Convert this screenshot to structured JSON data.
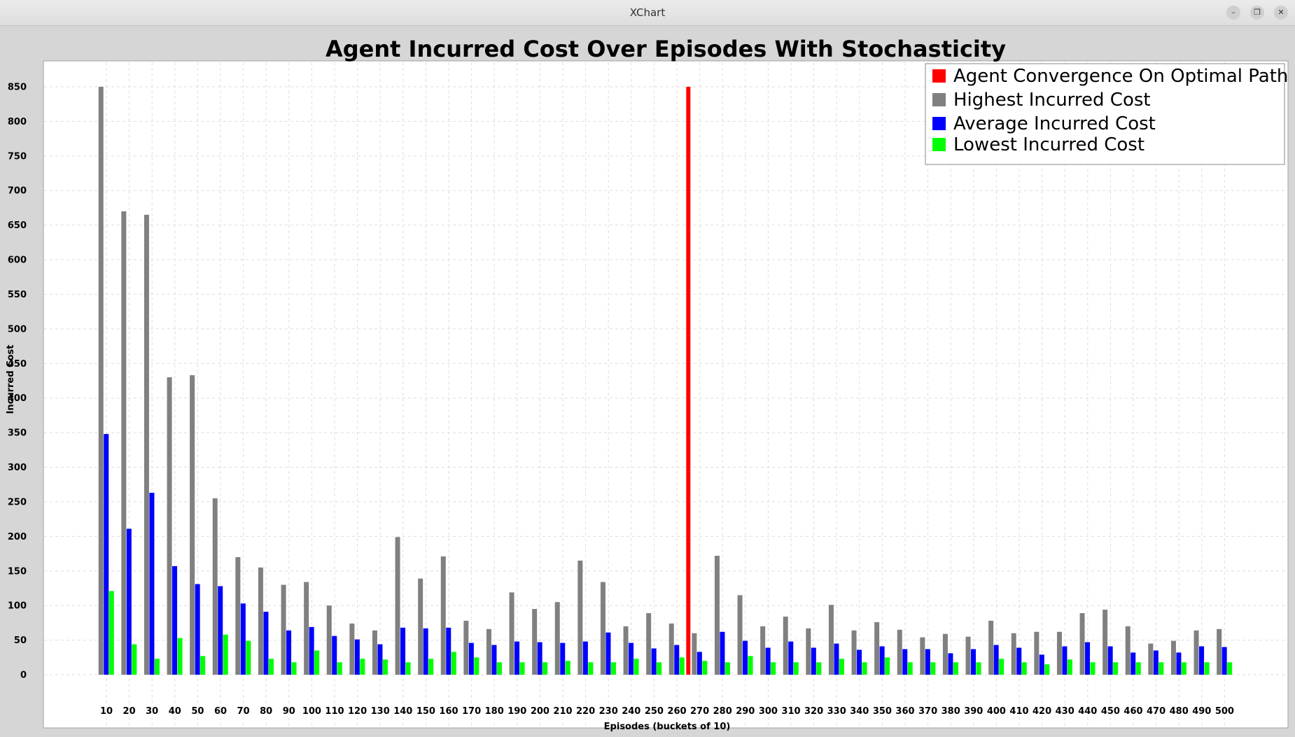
{
  "window": {
    "title": "XChart"
  },
  "chart_data": {
    "type": "bar",
    "title": "Agent Incurred Cost Over Episodes With Stochasticity",
    "xlabel": "Episodes (buckets of 10)",
    "ylabel": "Incurred Cost",
    "ylim": [
      0,
      850
    ],
    "yticks": [
      0,
      50,
      100,
      150,
      200,
      250,
      300,
      350,
      400,
      450,
      500,
      550,
      600,
      650,
      700,
      750,
      800,
      850
    ],
    "grid": true,
    "legend_position": "top-right",
    "categories": [
      "10",
      "20",
      "30",
      "40",
      "50",
      "60",
      "70",
      "80",
      "90",
      "100",
      "110",
      "120",
      "130",
      "140",
      "150",
      "160",
      "170",
      "180",
      "190",
      "200",
      "210",
      "220",
      "230",
      "240",
      "250",
      "260",
      "270",
      "280",
      "290",
      "300",
      "310",
      "320",
      "330",
      "340",
      "350",
      "360",
      "370",
      "380",
      "390",
      "400",
      "410",
      "420",
      "430",
      "440",
      "450",
      "460",
      "470",
      "480",
      "490",
      "500"
    ],
    "convergence": {
      "name": "Agent Convergence On Optimal Path",
      "position": "between 260 and 270",
      "value": 850,
      "color": "#ff0000"
    },
    "series": [
      {
        "name": "Highest Incurred Cost",
        "color": "#808080",
        "values": [
          850,
          670,
          665,
          430,
          433,
          255,
          170,
          155,
          130,
          134,
          100,
          74,
          64,
          199,
          139,
          171,
          78,
          66,
          119,
          95,
          105,
          165,
          134,
          70,
          89,
          74,
          60,
          172,
          115,
          70,
          84,
          67,
          101,
          64,
          76,
          65,
          54,
          59,
          55,
          78,
          60,
          62,
          62,
          89,
          94,
          70,
          45,
          49,
          64,
          66
        ]
      },
      {
        "name": "Average Incurred Cost",
        "color": "#0000ff",
        "values": [
          348,
          211,
          263,
          157,
          131,
          128,
          103,
          91,
          64,
          69,
          56,
          51,
          44,
          68,
          67,
          68,
          46,
          43,
          48,
          47,
          46,
          48,
          61,
          46,
          38,
          43,
          33,
          62,
          49,
          39,
          48,
          39,
          45,
          36,
          41,
          37,
          37,
          31,
          37,
          43,
          39,
          29,
          41,
          47,
          41,
          32,
          35,
          32,
          41,
          40
        ]
      },
      {
        "name": "Lowest Incurred Cost",
        "color": "#00ff00",
        "values": [
          121,
          44,
          23,
          53,
          27,
          58,
          49,
          23,
          18,
          35,
          18,
          23,
          22,
          18,
          23,
          33,
          25,
          18,
          18,
          18,
          20,
          18,
          18,
          23,
          18,
          25,
          20,
          18,
          27,
          18,
          18,
          18,
          23,
          18,
          25,
          18,
          18,
          18,
          18,
          23,
          18,
          15,
          22,
          18,
          18,
          18,
          18,
          18,
          18,
          18
        ]
      }
    ]
  }
}
